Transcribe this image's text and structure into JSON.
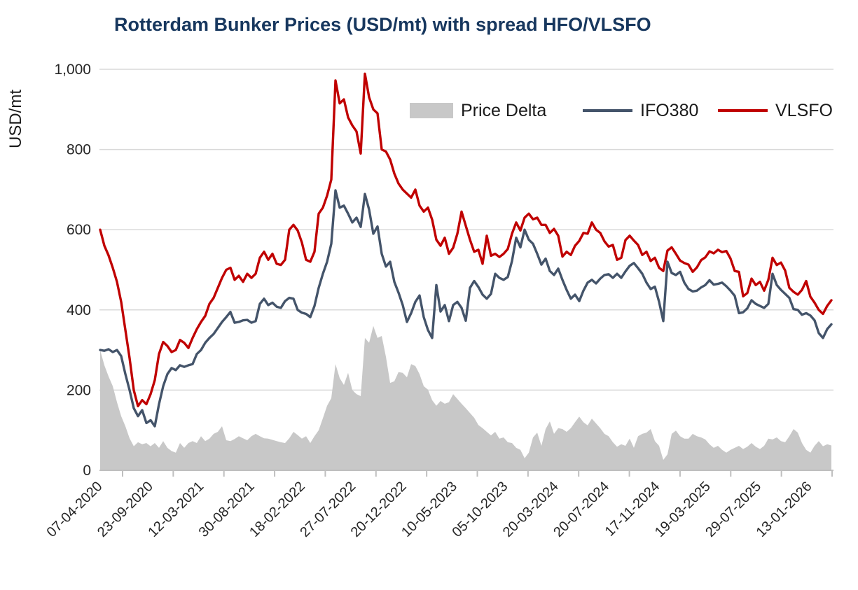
{
  "title": "Rotterdam Bunker Prices (USD/mt) with spread HFO/VLSFO",
  "legend": [
    {
      "label": "Price Delta",
      "type": "area",
      "color": "#C8C8C8"
    },
    {
      "label": "IFO380",
      "type": "line",
      "color": "#44546A"
    },
    {
      "label": "VLSFO",
      "type": "line",
      "color": "#C00000"
    }
  ],
  "colors": {
    "title": "#17375E",
    "gridline": "#D9D9D9",
    "axis": "#BFBFBF",
    "tick_text": "#262626",
    "price_delta": "#C8C8C8",
    "ifo380": "#44546A",
    "vlsfo": "#C00000"
  },
  "y_axis": {
    "title": "USD/mt",
    "tick_labels": [
      "1,000",
      "800",
      "600",
      "400",
      "200",
      "0"
    ],
    "tick_values": [
      1000,
      800,
      600,
      400,
      200,
      0
    ]
  },
  "x_axis": {
    "tick_labels": [
      "07-04-2020",
      "23-09-2020",
      "12-03-2021",
      "30-08-2021",
      "18-02-2022",
      "27-07-2022",
      "20-12-2022",
      "10-05-2023",
      "05-10-2023",
      "20-03-2024",
      "20-07-2024",
      "17-11-2024",
      "19-03-2025",
      "29-07-2025",
      "13-01-2026"
    ]
  },
  "chart_data": {
    "type": "line",
    "title": "Rotterdam Bunker Prices (USD/mt) with spread HFO/VLSFO",
    "ylabel": "USD/mt",
    "ylim": [
      0,
      1000
    ],
    "grid": "horizontal",
    "legend_position": "top-inside",
    "x_tick_labels": [
      "07-04-2020",
      "23-09-2020",
      "12-03-2021",
      "30-08-2021",
      "18-02-2022",
      "27-07-2022",
      "20-12-2022",
      "10-05-2023",
      "05-10-2023",
      "20-03-2024",
      "20-07-2024",
      "17-11-2024",
      "19-03-2025",
      "29-07-2025",
      "13-01-2026"
    ],
    "note": "175 evenly spaced samples (USD/mt) spanning 07-04-2020 to 13-01-2026",
    "series": [
      {
        "name": "Price Delta",
        "type": "area",
        "color": "#C8C8C8",
        "values": [
          300,
          262,
          234,
          210,
          170,
          135,
          110,
          80,
          60,
          70,
          65,
          68,
          60,
          68,
          56,
          73,
          56,
          48,
          44,
          68,
          56,
          68,
          73,
          68,
          85,
          73,
          79,
          91,
          96,
          110,
          75,
          73,
          78,
          85,
          80,
          75,
          85,
          91,
          85,
          80,
          79,
          76,
          73,
          70,
          68,
          80,
          96,
          88,
          79,
          85,
          68,
          85,
          100,
          130,
          161,
          180,
          265,
          230,
          213,
          243,
          200,
          190,
          185,
          330,
          318,
          360,
          330,
          335,
          283,
          218,
          222,
          245,
          243,
          232,
          265,
          260,
          240,
          210,
          201,
          175,
          161,
          173,
          166,
          170,
          190,
          178,
          166,
          155,
          143,
          131,
          113,
          105,
          96,
          87,
          96,
          79,
          82,
          70,
          68,
          56,
          51,
          30,
          44,
          82,
          94,
          61,
          103,
          122,
          91,
          105,
          103,
          96,
          105,
          120,
          134,
          120,
          112,
          129,
          117,
          105,
          91,
          85,
          70,
          59,
          65,
          61,
          79,
          56,
          85,
          91,
          94,
          103,
          73,
          61,
          26,
          40,
          91,
          99,
          85,
          79,
          79,
          91,
          85,
          82,
          77,
          65,
          56,
          61,
          51,
          44,
          51,
          56,
          61,
          53,
          59,
          68,
          59,
          53,
          61,
          79,
          77,
          82,
          73,
          70,
          85,
          103,
          94,
          68,
          51,
          44,
          61,
          73,
          60,
          65,
          62
        ]
      },
      {
        "name": "IFO380",
        "type": "line",
        "color": "#44546A",
        "values": [
          300,
          298,
          302,
          295,
          300,
          285,
          240,
          200,
          155,
          135,
          150,
          118,
          125,
          110,
          165,
          210,
          240,
          255,
          250,
          262,
          258,
          262,
          265,
          290,
          300,
          318,
          330,
          340,
          355,
          370,
          382,
          395,
          368,
          370,
          374,
          375,
          368,
          372,
          415,
          428,
          412,
          418,
          408,
          405,
          422,
          430,
          428,
          400,
          393,
          390,
          382,
          410,
          455,
          490,
          520,
          565,
          698,
          655,
          660,
          640,
          618,
          630,
          607,
          689,
          650,
          590,
          608,
          540,
          508,
          520,
          470,
          443,
          412,
          370,
          392,
          420,
          436,
          382,
          350,
          330,
          462,
          396,
          412,
          372,
          412,
          420,
          405,
          373,
          455,
          472,
          457,
          438,
          428,
          440,
          490,
          480,
          475,
          482,
          522,
          580,
          556,
          600,
          575,
          565,
          540,
          513,
          528,
          497,
          487,
          503,
          475,
          450,
          428,
          438,
          422,
          448,
          468,
          475,
          466,
          478,
          487,
          489,
          480,
          490,
          480,
          496,
          510,
          517,
          504,
          490,
          468,
          452,
          458,
          420,
          372,
          520,
          492,
          487,
          495,
          468,
          452,
          446,
          448,
          456,
          462,
          474,
          463,
          465,
          468,
          459,
          448,
          435,
          392,
          394,
          404,
          424,
          415,
          410,
          405,
          415,
          490,
          462,
          450,
          440,
          430,
          402,
          400,
          388,
          392,
          386,
          374,
          342,
          330,
          352,
          364
        ]
      },
      {
        "name": "VLSFO",
        "type": "line",
        "color": "#C00000",
        "values": [
          600,
          560,
          536,
          505,
          470,
          420,
          350,
          280,
          200,
          160,
          175,
          165,
          190,
          225,
          290,
          320,
          310,
          295,
          300,
          325,
          318,
          305,
          330,
          352,
          370,
          385,
          415,
          430,
          455,
          480,
          500,
          505,
          475,
          485,
          470,
          490,
          480,
          490,
          530,
          545,
          525,
          540,
          515,
          512,
          525,
          600,
          612,
          598,
          568,
          525,
          520,
          545,
          640,
          655,
          685,
          725,
          972,
          915,
          925,
          880,
          860,
          845,
          790,
          989,
          930,
          900,
          890,
          800,
          795,
          775,
          740,
          715,
          700,
          690,
          680,
          700,
          660,
          645,
          655,
          625,
          575,
          560,
          580,
          540,
          555,
          590,
          645,
          610,
          575,
          545,
          550,
          515,
          585,
          535,
          540,
          532,
          540,
          552,
          590,
          618,
          598,
          630,
          640,
          626,
          630,
          612,
          612,
          592,
          602,
          585,
          533,
          545,
          537,
          560,
          572,
          592,
          590,
          618,
          600,
          592,
          571,
          558,
          562,
          525,
          530,
          574,
          585,
          573,
          562,
          537,
          545,
          522,
          530,
          505,
          497,
          548,
          556,
          540,
          523,
          517,
          513,
          495,
          506,
          524,
          531,
          546,
          541,
          550,
          544,
          547,
          528,
          497,
          495,
          434,
          442,
          478,
          462,
          470,
          448,
          475,
          530,
          512,
          518,
          498,
          455,
          445,
          438,
          450,
          472,
          433,
          418,
          400,
          390,
          410,
          424
        ]
      }
    ]
  }
}
